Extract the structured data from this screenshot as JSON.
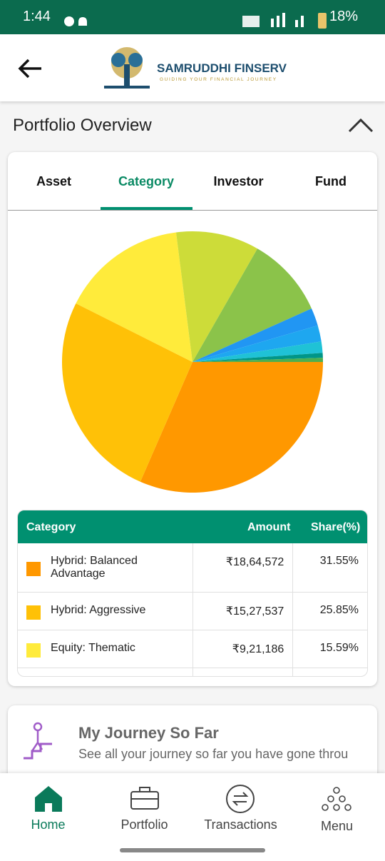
{
  "status": {
    "time": "1:44",
    "battery": "18%"
  },
  "header": {
    "brand": "SAMRUDDHI FINSERV",
    "tagline": "GUIDING YOUR FINANCIAL JOURNEY"
  },
  "section": {
    "title": "Portfolio Overview"
  },
  "tabs": [
    "Asset",
    "Category",
    "Investor",
    "Fund"
  ],
  "chart_data": {
    "type": "pie",
    "categories": [
      "Hybrid: Balanced Advantage",
      "Hybrid: Aggressive",
      "Equity: Thematic",
      null,
      null,
      null,
      null,
      null,
      null,
      null
    ],
    "values": [
      31.55,
      25.85,
      15.59,
      10.3,
      10,
      2.2,
      2,
      1.4,
      0.6,
      0.51
    ],
    "colors": [
      "#ff9800",
      "#ffc107",
      "#ffeb3b",
      "#cddc39",
      "#8bc34a",
      "#2196f3",
      "#1ea7f0",
      "#1fc2d6",
      "#009688",
      "#4caf50"
    ]
  },
  "table": {
    "header": [
      "Category",
      "Amount",
      "Share(%)"
    ],
    "rows": [
      [
        "Hybrid: Balanced Advantage",
        "₹18,64,572",
        "31.55%"
      ],
      [
        "Hybrid: Aggressive",
        "₹15,27,537",
        "25.85%"
      ],
      [
        "Equity: Thematic",
        "₹9,21,186",
        "15.59%"
      ]
    ]
  },
  "journey": {
    "title": "My Journey So Far",
    "subtitle": "See all your journey so far you have gone throu"
  },
  "nav": [
    "Home",
    "Portfolio",
    "Transactions",
    "Menu"
  ]
}
